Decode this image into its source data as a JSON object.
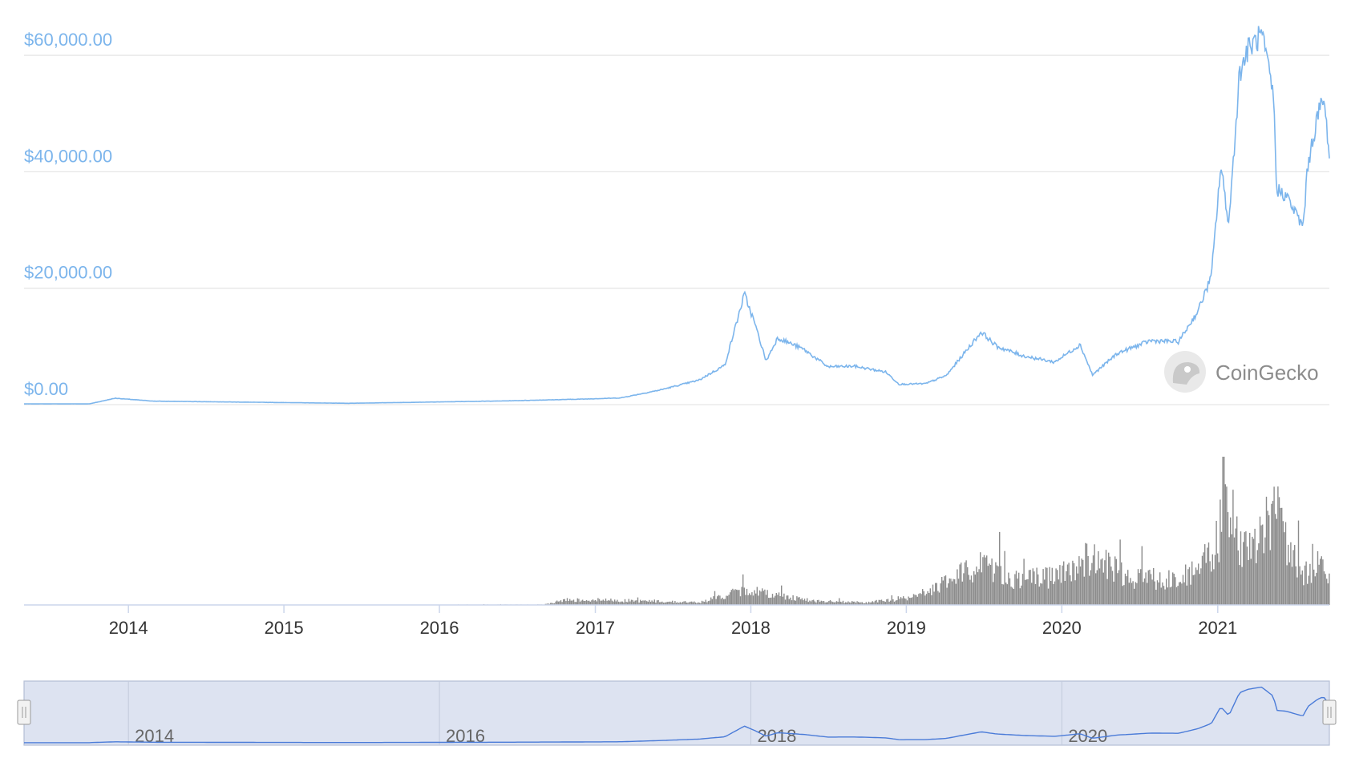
{
  "brand": {
    "name": "CoinGecko",
    "logo_icon": "gecko-logo-icon"
  },
  "colors": {
    "price_line": "#7cb5ec",
    "volume_bars": "#8c8c8c",
    "grid": "#e6e6e6",
    "axis_labels": "#7cb5ec",
    "navigator_fill": "#dde3f1",
    "navigator_line": "#4a7bd8"
  },
  "chart_data": [
    {
      "type": "line",
      "name": "price",
      "y_axis_labels": [
        "$60,000.00",
        "$40,000.00",
        "$20,000.00",
        "$0.00"
      ],
      "y_ticks": [
        60000,
        40000,
        20000,
        0
      ],
      "ylim": [
        0,
        64000
      ],
      "xlim": [
        "2013-05-01",
        "2021-09-20"
      ],
      "grid": true,
      "x": [
        "2013-05-01",
        "2013-10-01",
        "2013-12-01",
        "2014-03-01",
        "2014-12-01",
        "2015-06-01",
        "2015-12-01",
        "2016-06-01",
        "2016-12-01",
        "2017-03-01",
        "2017-06-01",
        "2017-09-01",
        "2017-11-01",
        "2017-12-17",
        "2018-01-10",
        "2018-02-06",
        "2018-03-05",
        "2018-05-05",
        "2018-07-01",
        "2018-09-01",
        "2018-11-14",
        "2018-12-15",
        "2019-02-15",
        "2019-04-05",
        "2019-06-26",
        "2019-08-01",
        "2019-10-01",
        "2019-12-15",
        "2020-02-13",
        "2020-03-13",
        "2020-05-10",
        "2020-07-27",
        "2020-10-01",
        "2020-11-15",
        "2020-12-17",
        "2021-01-08",
        "2021-01-27",
        "2021-02-21",
        "2021-03-13",
        "2021-04-14",
        "2021-05-12",
        "2021-05-19",
        "2021-06-10",
        "2021-07-20",
        "2021-08-01",
        "2021-08-23",
        "2021-09-06",
        "2021-09-15",
        "2021-09-20"
      ],
      "y": [
        130,
        130,
        1100,
        600,
        380,
        230,
        430,
        640,
        950,
        1150,
        2500,
        4200,
        6800,
        19000,
        14000,
        7500,
        11500,
        9500,
        6500,
        6600,
        5600,
        3500,
        3600,
        5000,
        12500,
        10000,
        8400,
        7300,
        10300,
        5100,
        8800,
        11000,
        10800,
        16000,
        22000,
        41000,
        31000,
        57000,
        61000,
        63500,
        53000,
        37000,
        36000,
        30500,
        41500,
        49500,
        52500,
        47000,
        43000
      ]
    },
    {
      "type": "bar",
      "name": "volume",
      "x": [
        "2013-05-01",
        "2016-09-01",
        "2016-10-20",
        "2017-01-05",
        "2017-09-01",
        "2017-12-20",
        "2018-06-01",
        "2018-10-01",
        "2019-01-15",
        "2019-04-15",
        "2019-06-26",
        "2019-09-15",
        "2019-12-15",
        "2020-03-12",
        "2020-06-01",
        "2020-09-01",
        "2020-11-15",
        "2021-01-04",
        "2021-01-11",
        "2021-02-15",
        "2021-03-20",
        "2021-05-19",
        "2021-06-15",
        "2021-07-20",
        "2021-08-15",
        "2021-09-07",
        "2021-09-20"
      ],
      "values": [
        0,
        0.3,
        4,
        4,
        2,
        12,
        3,
        2,
        6,
        19,
        34,
        20,
        22,
        38,
        22,
        20,
        27,
        52,
        100,
        48,
        40,
        80,
        42,
        25,
        30,
        33,
        24
      ],
      "unit": "relative"
    },
    {
      "type": "area",
      "name": "navigator",
      "x_tick_labels": [
        "2014",
        "2016",
        "2018",
        "2020"
      ]
    }
  ],
  "x_tick_labels": [
    "2014",
    "2015",
    "2016",
    "2017",
    "2018",
    "2019",
    "2020",
    "2021"
  ],
  "x_tick_dates": [
    "2014-01-01",
    "2015-01-01",
    "2016-01-01",
    "2017-01-01",
    "2018-01-01",
    "2019-01-01",
    "2020-01-01",
    "2021-01-01"
  ],
  "navigator_tick_dates": [
    "2014-01-01",
    "2016-01-01",
    "2018-01-01",
    "2020-01-01"
  ]
}
